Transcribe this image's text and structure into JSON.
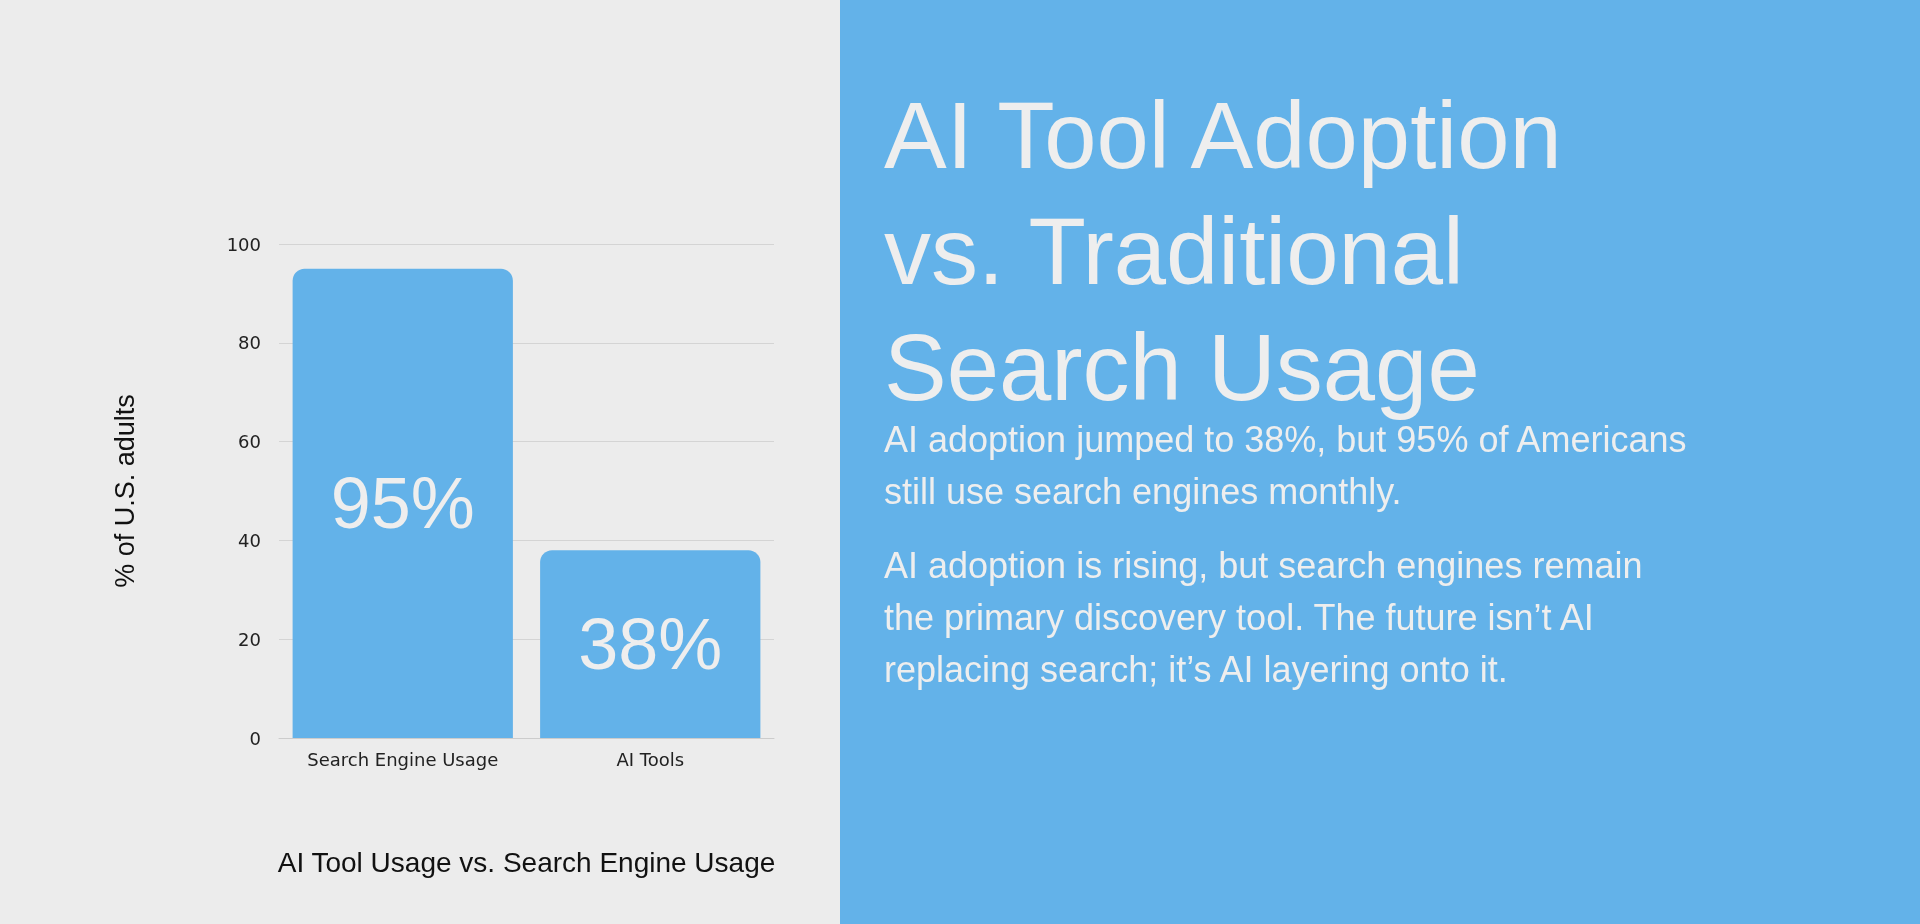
{
  "chart_data": {
    "type": "bar",
    "title": "AI Tool Adoption vs. Traditional Search Usage",
    "xlabel": "AI Tool Usage vs. Search Engine Usage",
    "ylabel": "% of U.S. adults",
    "categories": [
      "Search Engine Usage",
      "AI Tools"
    ],
    "values": [
      95,
      38
    ],
    "value_labels": [
      "95%",
      "38%"
    ],
    "color": "#63b2e9",
    "ylim": [
      0,
      100
    ],
    "yticks": [
      0,
      20,
      40,
      60,
      80,
      100
    ],
    "grid": "y",
    "annotations": [
      "AI adoption jumped to 38%, but 95% of Americans still use search engines monthly.",
      "AI adoption is rising, but search engines remain the primary discovery tool. The future isn’t AI replacing search; it’s AI layering onto it."
    ]
  }
}
